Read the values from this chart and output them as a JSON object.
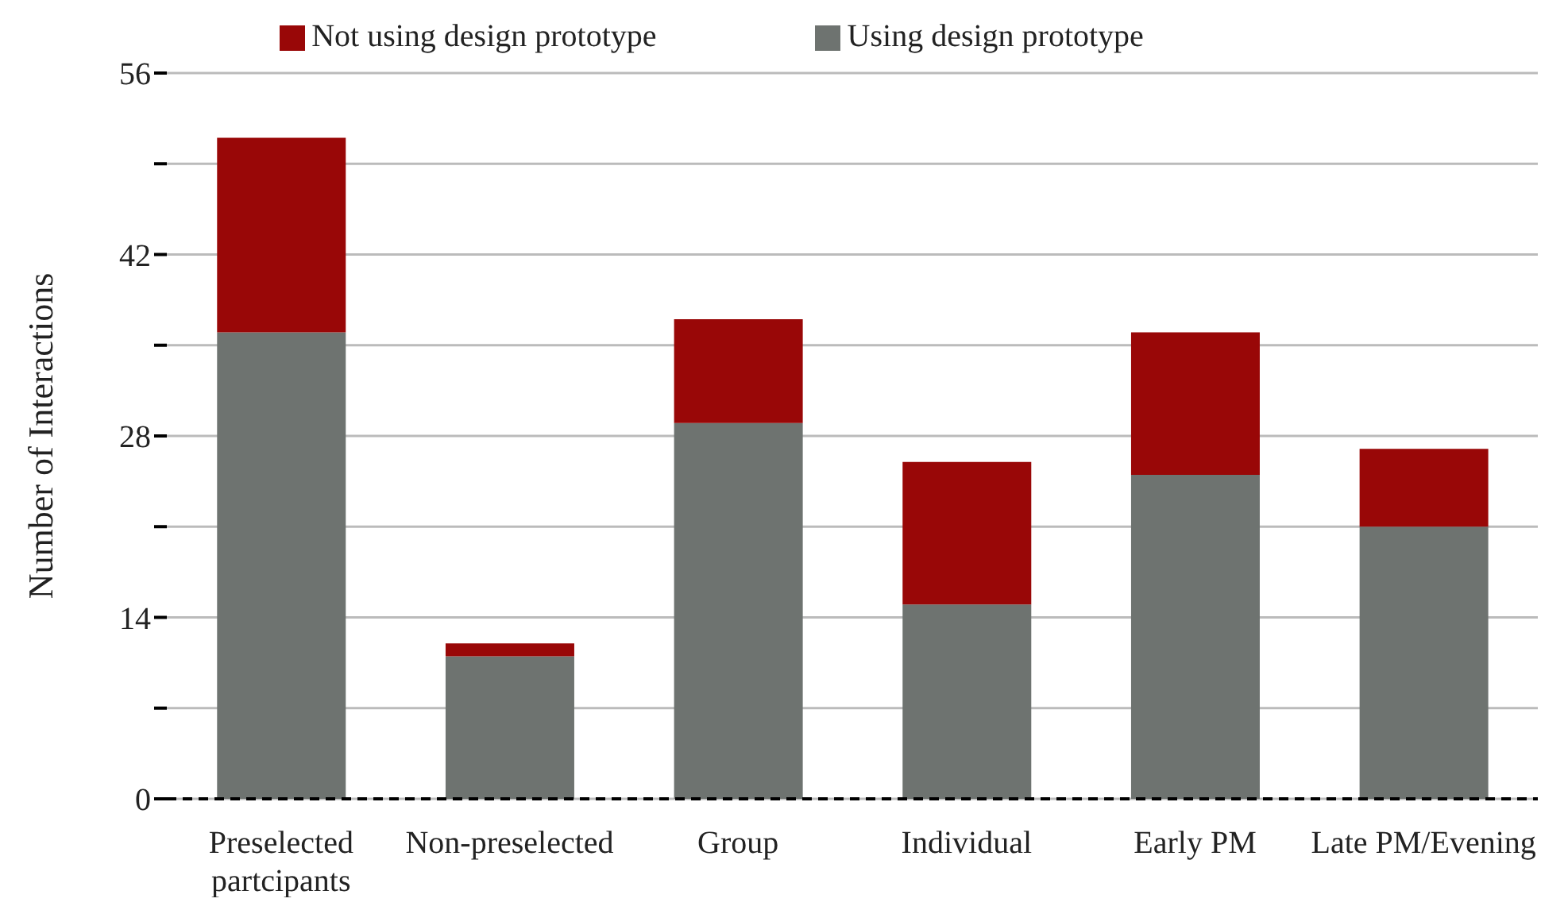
{
  "chart_data": {
    "type": "bar",
    "stacked": true,
    "ylabel": "Number of Interactions",
    "categories": [
      "Preselected partcipants",
      "Non-preselected",
      "Group",
      "Individual",
      "Early PM",
      "Late PM/Evening"
    ],
    "series": [
      {
        "name": "Using design prototype",
        "color": "#6e7370",
        "values": [
          36,
          11,
          29,
          15,
          25,
          21
        ]
      },
      {
        "name": "Not using design prototype",
        "color": "#990707",
        "values": [
          15,
          1,
          8,
          11,
          11,
          6
        ]
      }
    ],
    "ylim": [
      0,
      56
    ],
    "yticks": [
      0,
      {
        "value": 7,
        "label": null
      },
      14,
      {
        "value": 21,
        "label": null
      },
      28,
      {
        "value": 35,
        "label": null
      },
      42,
      {
        "value": 49,
        "label": null
      },
      56
    ],
    "grid": "y",
    "legend": "top"
  }
}
